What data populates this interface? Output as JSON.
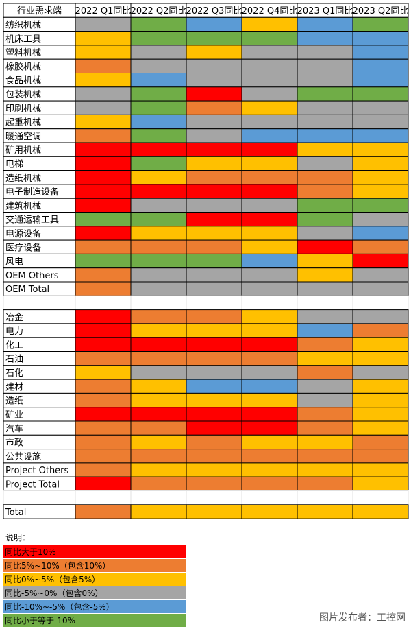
{
  "colors": {
    "gt10": "#ff0000",
    "p5to10": "#ed7d31",
    "p0to5": "#ffc000",
    "n5to0": "#a5a5a5",
    "n10ton5": "#5b9bd5",
    "lten10": "#70ad47"
  },
  "chart_data": {
    "type": "heatmap",
    "columns": [
      "行业需求端",
      "2022 Q1同比",
      "2022 Q2同比",
      "2022 Q3同比",
      "2022 Q4同比",
      "2023 Q1同比",
      "2023 Q2同比"
    ],
    "rows": [
      {
        "label": "纺织机械",
        "values": [
          "n5to0",
          "lten10",
          "n10ton5",
          "p0to5",
          "n10ton5",
          "lten10"
        ]
      },
      {
        "label": "机床工具",
        "values": [
          "p0to5",
          "lten10",
          "lten10",
          "lten10",
          "n10ton5",
          "n10ton5"
        ]
      },
      {
        "label": "塑料机械",
        "values": [
          "p0to5",
          "n5to0",
          "p0to5",
          "n5to0",
          "n5to0",
          "n10ton5"
        ]
      },
      {
        "label": "橡胶机械",
        "values": [
          "p5to10",
          "n5to0",
          "n5to0",
          "n5to0",
          "n5to0",
          "n10ton5"
        ]
      },
      {
        "label": "食品机械",
        "values": [
          "p0to5",
          "n10ton5",
          "n5to0",
          "n5to0",
          "n5to0",
          "n10ton5"
        ]
      },
      {
        "label": "包装机械",
        "values": [
          "n5to0",
          "lten10",
          "gt10",
          "n5to0",
          "lten10",
          "lten10"
        ]
      },
      {
        "label": "印刷机械",
        "values": [
          "n5to0",
          "lten10",
          "p5to10",
          "p0to5",
          "n5to0",
          "n5to0"
        ]
      },
      {
        "label": "起重机械",
        "values": [
          "p0to5",
          "n10ton5",
          "n5to0",
          "n5to0",
          "n5to0",
          "n5to0"
        ]
      },
      {
        "label": "暖通空调",
        "values": [
          "p5to10",
          "lten10",
          "n5to0",
          "n10ton5",
          "n10ton5",
          "n10ton5"
        ]
      },
      {
        "label": "矿用机械",
        "values": [
          "gt10",
          "gt10",
          "gt10",
          "gt10",
          "p0to5",
          "p0to5"
        ]
      },
      {
        "label": "电梯",
        "values": [
          "gt10",
          "lten10",
          "p0to5",
          "p0to5",
          "n5to0",
          "p0to5"
        ]
      },
      {
        "label": "造纸机械",
        "values": [
          "gt10",
          "p0to5",
          "p5to10",
          "p5to10",
          "p5to10",
          "p0to5"
        ]
      },
      {
        "label": "电子制造设备",
        "values": [
          "gt10",
          "gt10",
          "gt10",
          "gt10",
          "p5to10",
          "p0to5"
        ]
      },
      {
        "label": "建筑机械",
        "values": [
          "gt10",
          "n5to0",
          "n5to0",
          "n5to0",
          "lten10",
          "lten10"
        ]
      },
      {
        "label": "交通运输工具",
        "values": [
          "lten10",
          "lten10",
          "gt10",
          "gt10",
          "lten10",
          "n5to0"
        ]
      },
      {
        "label": "电源设备",
        "values": [
          "gt10",
          "p0to5",
          "p0to5",
          "p0to5",
          "n5to0",
          "n10ton5"
        ]
      },
      {
        "label": "医疗设备",
        "values": [
          "p5to10",
          "p5to10",
          "p5to10",
          "p0to5",
          "gt10",
          "p5to10"
        ]
      },
      {
        "label": "风电",
        "values": [
          "lten10",
          "lten10",
          "lten10",
          "n10ton5",
          "p0to5",
          "gt10"
        ]
      },
      {
        "label": "OEM Others",
        "values": [
          "p5to10",
          "n5to0",
          "n5to0",
          "n5to0",
          "p0to5",
          "n5to0"
        ]
      },
      {
        "label": "OEM Total",
        "values": [
          "p5to10",
          "n5to0",
          "n5to0",
          "n5to0",
          "n5to0",
          "n5to0"
        ]
      },
      {
        "label": "",
        "values": [
          "",
          "",
          "",
          "",
          "",
          ""
        ]
      },
      {
        "label": "冶金",
        "values": [
          "gt10",
          "p5to10",
          "p5to10",
          "p0to5",
          "n5to0",
          "n5to0"
        ]
      },
      {
        "label": "电力",
        "values": [
          "gt10",
          "p0to5",
          "p0to5",
          "p0to5",
          "n10ton5",
          "p5to10"
        ]
      },
      {
        "label": "化工",
        "values": [
          "gt10",
          "gt10",
          "gt10",
          "gt10",
          "p5to10",
          "p0to5"
        ]
      },
      {
        "label": "石油",
        "values": [
          "p5to10",
          "p5to10",
          "p5to10",
          "p5to10",
          "p0to5",
          "p0to5"
        ]
      },
      {
        "label": "石化",
        "values": [
          "p0to5",
          "n5to0",
          "n5to0",
          "n5to0",
          "p5to10",
          "n5to0"
        ]
      },
      {
        "label": "建材",
        "values": [
          "p5to10",
          "p0to5",
          "n10ton5",
          "n10ton5",
          "n5to0",
          "p0to5"
        ]
      },
      {
        "label": "造纸",
        "values": [
          "p5to10",
          "p0to5",
          "p0to5",
          "p0to5",
          "n5to0",
          "p0to5"
        ]
      },
      {
        "label": "矿业",
        "values": [
          "gt10",
          "gt10",
          "gt10",
          "gt10",
          "p5to10",
          "p0to5"
        ]
      },
      {
        "label": "汽车",
        "values": [
          "p5to10",
          "p5to10",
          "gt10",
          "gt10",
          "p5to10",
          "p0to5"
        ]
      },
      {
        "label": "市政",
        "values": [
          "p5to10",
          "p0to5",
          "p5to10",
          "p0to5",
          "p0to5",
          "p5to10"
        ]
      },
      {
        "label": "公共设施",
        "values": [
          "p5to10",
          "p5to10",
          "p5to10",
          "p5to10",
          "p5to10",
          "p5to10"
        ]
      },
      {
        "label": "Project Others",
        "values": [
          "p5to10",
          "p0to5",
          "p0to5",
          "p0to5",
          "p0to5",
          "p0to5"
        ]
      },
      {
        "label": "Project Total",
        "values": [
          "gt10",
          "p5to10",
          "p5to10",
          "p5to10",
          "p5to10",
          "p0to5"
        ]
      },
      {
        "label": "",
        "values": [
          "",
          "",
          "",
          "",
          "",
          ""
        ]
      },
      {
        "label": "Total",
        "values": [
          "p5to10",
          "p0to5",
          "p0to5",
          "p0to5",
          "p0to5",
          "p0to5"
        ]
      }
    ]
  },
  "legend": {
    "title": "说明：",
    "items": [
      {
        "key": "gt10",
        "label": "同比大于10%"
      },
      {
        "key": "p5to10",
        "label": "同比5%~10%（包含10%）"
      },
      {
        "key": "p0to5",
        "label": "同比0%~5%（包含5%）"
      },
      {
        "key": "n5to0",
        "label": "同比-5%~0%（包含0%）"
      },
      {
        "key": "n10ton5",
        "label": "同比-10%~-5%（包含-5%）"
      },
      {
        "key": "lten10",
        "label": "同比小于等于-10%"
      }
    ]
  },
  "watermark": "图片发布者：工控网"
}
